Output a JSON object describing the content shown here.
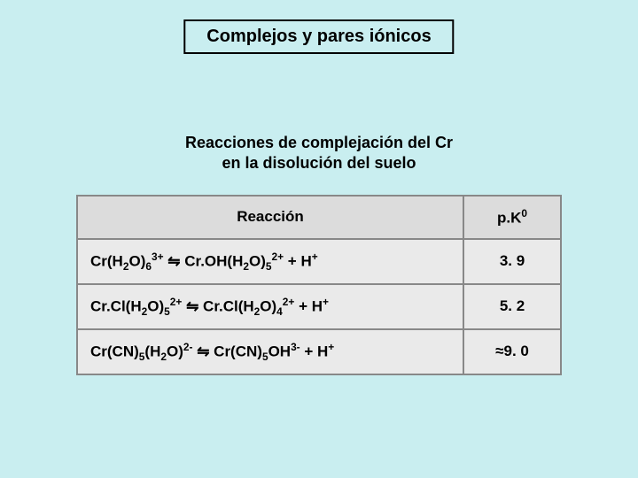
{
  "title": "Complejos y pares iónicos",
  "subtitle_line1": "Reacciones de complejación del Cr",
  "subtitle_line2": "en la disolución del suelo",
  "table": {
    "header_reaction": "Reacción",
    "header_pk": "p.K",
    "header_pk_sup": "0",
    "rows": [
      {
        "reaction_html": "Cr(H<sub>2</sub>O)<sub>6</sub><sup>3+</sup> <span class='arrow'>⇋</span> Cr.OH(H<sub>2</sub>O)<sub>5</sub><sup>2+</sup> + H<sup>+</sup>",
        "pk": "3. 9"
      },
      {
        "reaction_html": "Cr.Cl(H<sub>2</sub>O)<sub>5</sub><sup>2+</sup> <span class='arrow'>⇋</span> Cr.Cl(H<sub>2</sub>O)<sub>4</sub><sup>2+</sup> + H<sup>+</sup>",
        "pk": "5. 2"
      },
      {
        "reaction_html": "Cr(CN)<sub>5</sub>(H<sub>2</sub>O)<sup>2-</sup> <span class='arrow'>⇋</span> Cr(CN)<sub>5</sub>OH<sup>3-</sup> + H<sup>+</sup>",
        "pk": "≈9. 0"
      }
    ]
  },
  "colors": {
    "background": "#c9eef0",
    "table_header_bg": "#dcdcdc",
    "table_cell_bg": "#eaeaea",
    "border": "#000000",
    "cell_border": "#888888"
  },
  "typography": {
    "title_fontsize": 20,
    "subtitle_fontsize": 18,
    "table_fontsize": 17,
    "font_family": "Verdana"
  }
}
